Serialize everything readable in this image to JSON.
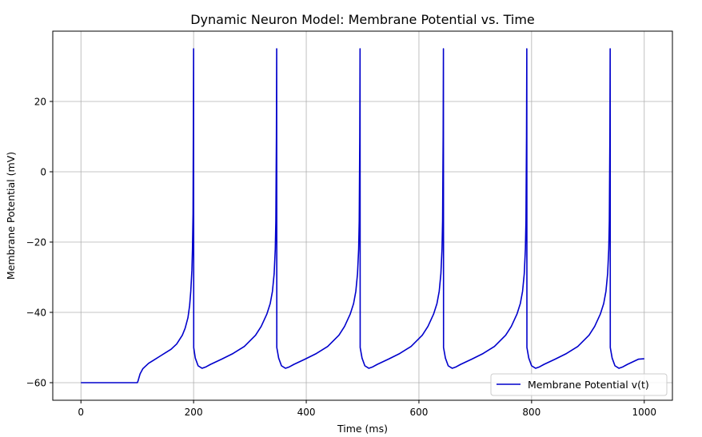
{
  "chart_data": {
    "type": "line",
    "title": "Dynamic Neuron Model: Membrane Potential vs. Time",
    "xlabel": "Time (ms)",
    "ylabel": "Membrane Potential (mV)",
    "xlim": [
      -50,
      1050
    ],
    "ylim": [
      -65,
      40
    ],
    "xticks": [
      0,
      200,
      400,
      600,
      800,
      1000
    ],
    "yticks": [
      -60,
      -40,
      -20,
      0,
      20
    ],
    "xtick_labels": [
      "0",
      "200",
      "400",
      "600",
      "800",
      "1000"
    ],
    "ytick_labels": [
      "−60",
      "−40",
      "−20",
      "0",
      "20"
    ],
    "grid": true,
    "legend": {
      "position": "lower-right",
      "entries": [
        "Membrane Potential v(t)"
      ]
    },
    "series": [
      {
        "name": "Membrane Potential v(t)",
        "color": "#0000cc",
        "x": [
          0,
          100,
          101,
          105,
          110,
          120,
          130,
          140,
          150,
          160,
          170,
          180,
          185,
          190,
          193,
          195,
          197,
          198,
          199,
          199.5,
          200,
          200.2,
          203,
          208,
          215,
          222,
          230,
          250,
          270,
          290,
          310,
          320,
          330,
          336,
          340,
          343,
          345,
          346,
          347,
          347.5,
          347.7,
          351,
          356,
          363,
          370,
          378,
          398,
          418,
          438,
          458,
          468,
          478,
          484,
          488,
          491,
          493,
          494,
          495,
          495.5,
          495.7,
          499,
          504,
          511,
          518,
          526,
          546,
          566,
          586,
          606,
          616,
          626,
          632,
          636,
          639,
          641,
          642,
          643,
          643.5,
          643.7,
          647,
          652,
          659,
          666,
          674,
          694,
          714,
          734,
          754,
          764,
          774,
          780,
          784,
          787,
          789,
          790,
          791,
          791.5,
          791.7,
          795,
          800,
          807,
          814,
          822,
          842,
          862,
          882,
          902,
          912,
          922,
          928,
          932,
          935,
          937,
          938,
          939,
          939.5,
          939.7,
          943,
          948,
          955,
          962,
          970,
          990,
          1000
        ],
        "y": [
          -60,
          -60,
          -59.7,
          -57.5,
          -56,
          -54.5,
          -53.5,
          -52.5,
          -51.5,
          -50.5,
          -49,
          -46.5,
          -44.5,
          -41.5,
          -38,
          -34,
          -28,
          -22,
          -12,
          10,
          35,
          -50,
          -53,
          -55.2,
          -55.9,
          -55.5,
          -54.8,
          -53.3,
          -51.7,
          -49.7,
          -46.5,
          -44,
          -40.5,
          -37.5,
          -34,
          -29,
          -22,
          -14,
          10,
          35,
          -50,
          -53,
          -55.2,
          -55.9,
          -55.5,
          -54.8,
          -53.3,
          -51.7,
          -49.7,
          -46.5,
          -44,
          -40.5,
          -37.5,
          -34,
          -29,
          -22,
          -14,
          10,
          35,
          -50,
          -53,
          -55.2,
          -55.9,
          -55.5,
          -54.8,
          -53.3,
          -51.7,
          -49.7,
          -46.5,
          -44,
          -40.5,
          -37.5,
          -34,
          -29,
          -22,
          -14,
          10,
          35,
          -50,
          -53,
          -55.2,
          -55.9,
          -55.5,
          -54.8,
          -53.3,
          -51.7,
          -49.7,
          -46.5,
          -44,
          -40.5,
          -37.5,
          -34,
          -29,
          -22,
          -14,
          10,
          35,
          -50,
          -53,
          -55.2,
          -55.9,
          -55.5,
          -54.8,
          -53.3,
          -51.7,
          -49.7,
          -46.5,
          -44,
          -40.5,
          -37.5,
          -34,
          -29,
          -22,
          -14,
          10,
          35,
          -50,
          -53,
          -55.2,
          -55.9,
          -55.5,
          -54.8,
          -53.3,
          -53.2
        ]
      }
    ]
  }
}
